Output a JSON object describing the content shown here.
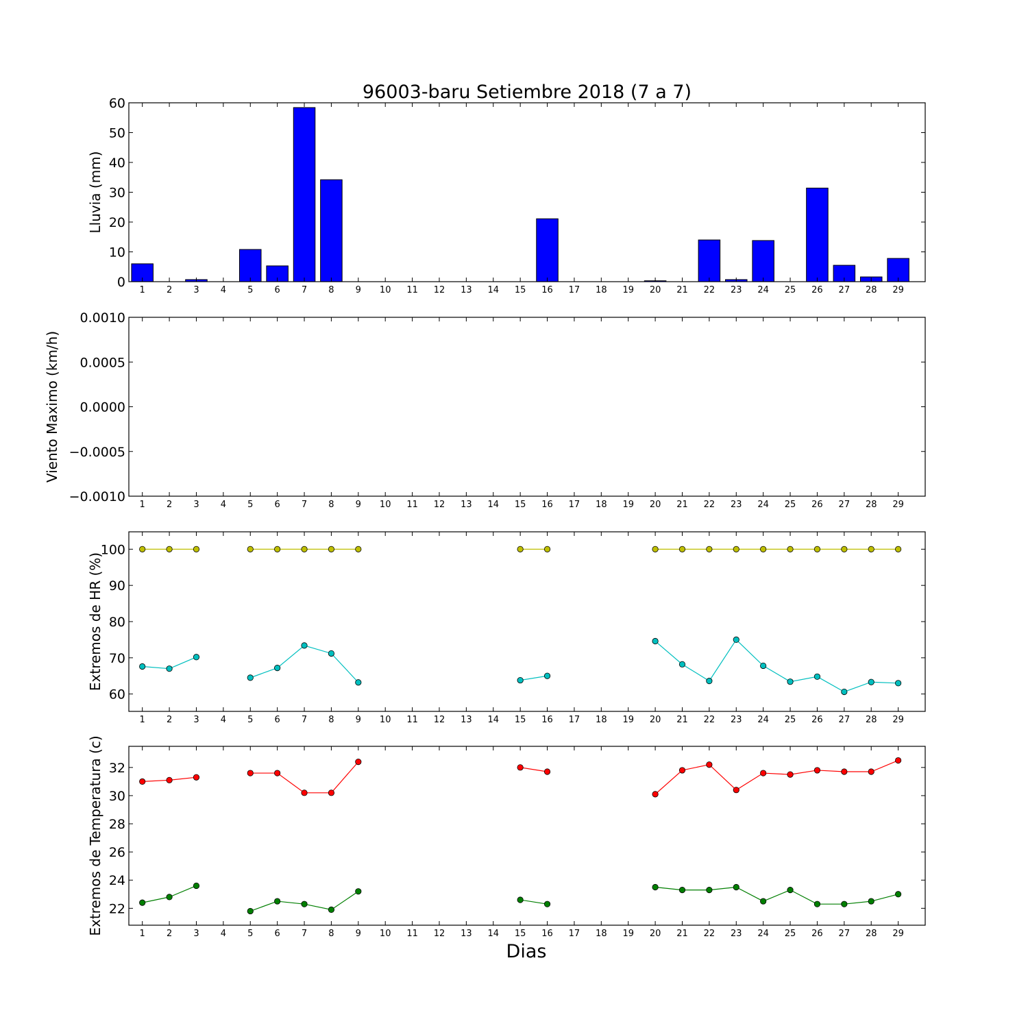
{
  "title": "96003-baru Setiembre 2018  (7 a 7)",
  "xlabel": "Dias",
  "chart_data": [
    {
      "type": "bar",
      "ylabel": "Lluvia (mm)",
      "ylim": [
        0,
        60
      ],
      "yticks": [
        "0",
        "10",
        "20",
        "30",
        "40",
        "50",
        "60"
      ],
      "x": [
        1,
        2,
        3,
        4,
        5,
        6,
        7,
        8,
        9,
        10,
        11,
        12,
        13,
        14,
        15,
        16,
        17,
        18,
        19,
        20,
        21,
        22,
        23,
        24,
        25,
        26,
        27,
        28,
        29
      ],
      "series": [
        {
          "color": "#0000ff",
          "values": [
            6.0,
            0,
            0.7,
            0,
            10.8,
            5.3,
            58.4,
            34.2,
            0,
            0,
            0,
            0,
            0,
            0,
            0,
            21.1,
            0,
            0,
            0,
            0.3,
            0,
            14.0,
            0.7,
            13.8,
            0,
            31.4,
            5.5,
            1.6,
            7.8
          ]
        }
      ]
    },
    {
      "type": "line",
      "ylabel": "Viento Maximo (km/h)",
      "ylim": [
        -0.001,
        0.001
      ],
      "yticks": [
        "−0.0010",
        "−0.0005",
        "0.0000",
        "0.0005",
        "0.0010"
      ],
      "x": [
        1,
        2,
        3,
        4,
        5,
        6,
        7,
        8,
        9,
        10,
        11,
        12,
        13,
        14,
        15,
        16,
        17,
        18,
        19,
        20,
        21,
        22,
        23,
        24,
        25,
        26,
        27,
        28,
        29
      ],
      "series": []
    },
    {
      "type": "line",
      "ylabel": "Extremos de HR (%)",
      "ylim": [
        55.2,
        104.8
      ],
      "yticks": [
        "60",
        "70",
        "80",
        "90",
        "100"
      ],
      "x": [
        1,
        2,
        3,
        4,
        5,
        6,
        7,
        8,
        9,
        10,
        11,
        12,
        13,
        14,
        15,
        16,
        17,
        18,
        19,
        20,
        21,
        22,
        23,
        24,
        25,
        26,
        27,
        28,
        29
      ],
      "series": [
        {
          "color": "#bfbf00",
          "values": [
            100,
            100,
            100,
            null,
            100,
            100,
            100,
            100,
            100,
            null,
            null,
            null,
            null,
            null,
            100,
            100,
            null,
            null,
            null,
            100,
            100,
            100,
            100,
            100,
            100,
            100,
            100,
            100,
            100
          ]
        },
        {
          "color": "#00bfbf",
          "values": [
            67.6,
            67.0,
            70.2,
            null,
            64.5,
            67.2,
            73.4,
            71.2,
            63.2,
            null,
            null,
            null,
            null,
            null,
            63.8,
            65.0,
            null,
            null,
            null,
            74.6,
            68.2,
            63.6,
            75.0,
            67.8,
            63.4,
            64.8,
            60.6,
            63.3,
            63.0
          ]
        }
      ]
    },
    {
      "type": "line",
      "ylabel": "Extremos de Temperatura (c)",
      "ylim": [
        20.8,
        33.5
      ],
      "yticks": [
        "22",
        "24",
        "26",
        "28",
        "30",
        "32"
      ],
      "x": [
        1,
        2,
        3,
        4,
        5,
        6,
        7,
        8,
        9,
        10,
        11,
        12,
        13,
        14,
        15,
        16,
        17,
        18,
        19,
        20,
        21,
        22,
        23,
        24,
        25,
        26,
        27,
        28,
        29
      ],
      "series": [
        {
          "color": "#ff0000",
          "values": [
            31.0,
            31.1,
            31.3,
            null,
            31.6,
            31.6,
            30.2,
            30.2,
            32.4,
            null,
            null,
            null,
            null,
            null,
            32.0,
            31.7,
            null,
            null,
            null,
            30.1,
            31.8,
            32.2,
            30.4,
            31.6,
            31.5,
            31.8,
            31.7,
            31.7,
            32.5
          ]
        },
        {
          "color": "#007f00",
          "values": [
            22.4,
            22.8,
            23.6,
            null,
            21.8,
            22.5,
            22.3,
            21.9,
            23.2,
            null,
            null,
            null,
            null,
            null,
            22.6,
            22.3,
            null,
            null,
            null,
            23.5,
            23.3,
            23.3,
            23.5,
            22.5,
            23.3,
            22.3,
            22.3,
            22.5,
            23.0
          ]
        }
      ]
    }
  ]
}
